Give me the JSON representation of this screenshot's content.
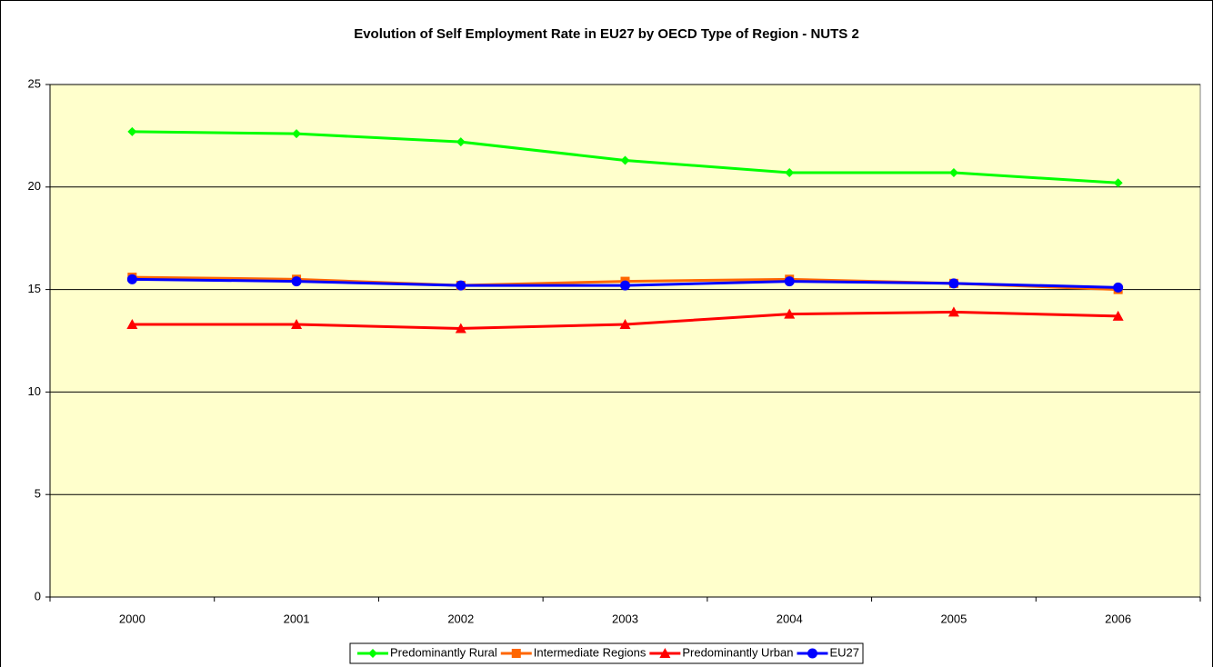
{
  "chart_data": {
    "type": "line",
    "title": "Evolution of Self Employment Rate in EU27 by OECD Type of Region - NUTS 2",
    "categories": [
      "2000",
      "2001",
      "2002",
      "2003",
      "2004",
      "2005",
      "2006"
    ],
    "series": [
      {
        "name": "Predominantly Rural",
        "color": "#00ff00",
        "marker": "diamond",
        "values": [
          22.7,
          22.6,
          22.2,
          21.3,
          20.7,
          20.7,
          20.2
        ]
      },
      {
        "name": "Intermediate Regions",
        "color": "#ff6600",
        "marker": "square",
        "values": [
          15.6,
          15.5,
          15.2,
          15.4,
          15.5,
          15.3,
          15.0
        ]
      },
      {
        "name": "Predominantly Urban",
        "color": "#ff0000",
        "marker": "triangle",
        "values": [
          13.3,
          13.3,
          13.1,
          13.3,
          13.8,
          13.9,
          13.7
        ]
      },
      {
        "name": "EU27",
        "color": "#0000ff",
        "marker": "circle",
        "values": [
          15.5,
          15.4,
          15.2,
          15.2,
          15.4,
          15.3,
          15.1
        ]
      }
    ],
    "ylim": [
      0,
      25
    ],
    "yticks": [
      0,
      5,
      10,
      15,
      20,
      25
    ],
    "grid": true,
    "legend": "bottom",
    "plot_background": "#ffffcc"
  }
}
